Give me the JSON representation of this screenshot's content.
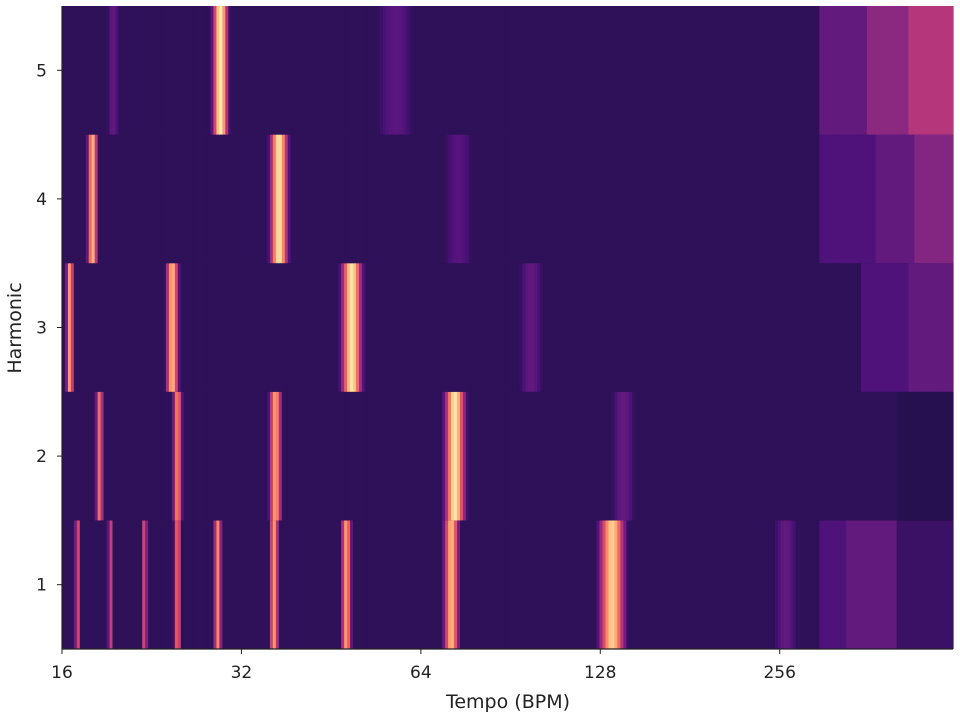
{
  "chart_data": {
    "type": "heatmap",
    "title": "",
    "xlabel": "Tempo (BPM)",
    "ylabel": "Harmonic",
    "x_scale": "log2",
    "xlim": [
      16,
      500
    ],
    "ylim": [
      0.5,
      5.5
    ],
    "x_ticks": [
      "16",
      "32",
      "64",
      "128",
      "256"
    ],
    "y_ticks": [
      "1",
      "2",
      "3",
      "4",
      "5"
    ],
    "colormap": [
      "#000004",
      "#1c1044",
      "#4f127b",
      "#812581",
      "#b5367a",
      "#e55064",
      "#fb8761",
      "#fec287",
      "#fcfdbf"
    ],
    "background_level": 0.17,
    "band_levels": [
      {
        "harmonic": 1,
        "tail": [
          [
            300,
            0.25
          ],
          [
            330,
            0.3
          ],
          [
            400,
            0.2
          ],
          [
            500,
            0.18
          ]
        ]
      },
      {
        "harmonic": 2,
        "tail": [
          [
            400,
            0.15
          ],
          [
            500,
            0.13
          ]
        ]
      },
      {
        "harmonic": 3,
        "tail": [
          [
            350,
            0.25
          ],
          [
            420,
            0.3
          ],
          [
            500,
            0.3
          ]
        ]
      },
      {
        "harmonic": 4,
        "tail": [
          [
            300,
            0.25
          ],
          [
            370,
            0.3
          ],
          [
            430,
            0.38
          ],
          [
            500,
            0.4
          ]
        ]
      },
      {
        "harmonic": 5,
        "tail": [
          [
            300,
            0.3
          ],
          [
            360,
            0.4
          ],
          [
            420,
            0.5
          ],
          [
            500,
            0.58
          ]
        ]
      }
    ],
    "peaks": [
      {
        "harmonic": 1,
        "bpm": 17.0,
        "value": 0.6,
        "width": 0.012
      },
      {
        "harmonic": 1,
        "bpm": 19.3,
        "value": 0.55,
        "width": 0.012
      },
      {
        "harmonic": 1,
        "bpm": 22.0,
        "value": 0.6,
        "width": 0.012
      },
      {
        "harmonic": 1,
        "bpm": 25.0,
        "value": 0.7,
        "width": 0.015
      },
      {
        "harmonic": 1,
        "bpm": 29.2,
        "value": 0.75,
        "width": 0.015
      },
      {
        "harmonic": 1,
        "bpm": 36.3,
        "value": 0.78,
        "width": 0.018
      },
      {
        "harmonic": 1,
        "bpm": 48.0,
        "value": 0.8,
        "width": 0.02
      },
      {
        "harmonic": 1,
        "bpm": 72.0,
        "value": 0.85,
        "width": 0.03
      },
      {
        "harmonic": 1,
        "bpm": 134.0,
        "value": 0.9,
        "width": 0.05
      },
      {
        "harmonic": 1,
        "bpm": 262.0,
        "value": 0.3,
        "width": 0.06
      },
      {
        "harmonic": 2,
        "bpm": 18.5,
        "value": 0.7,
        "width": 0.015
      },
      {
        "harmonic": 2,
        "bpm": 25.0,
        "value": 0.75,
        "width": 0.018
      },
      {
        "harmonic": 2,
        "bpm": 36.5,
        "value": 0.8,
        "width": 0.025
      },
      {
        "harmonic": 2,
        "bpm": 73.0,
        "value": 0.95,
        "width": 0.04
      },
      {
        "harmonic": 2,
        "bpm": 140.0,
        "value": 0.3,
        "width": 0.06
      },
      {
        "harmonic": 3,
        "bpm": 16.5,
        "value": 0.8,
        "width": 0.015
      },
      {
        "harmonic": 3,
        "bpm": 24.5,
        "value": 0.85,
        "width": 0.025
      },
      {
        "harmonic": 3,
        "bpm": 49.0,
        "value": 0.95,
        "width": 0.04
      },
      {
        "harmonic": 3,
        "bpm": 98.0,
        "value": 0.3,
        "width": 0.06
      },
      {
        "harmonic": 4,
        "bpm": 18.0,
        "value": 0.85,
        "width": 0.02
      },
      {
        "harmonic": 4,
        "bpm": 37.0,
        "value": 0.95,
        "width": 0.035
      },
      {
        "harmonic": 4,
        "bpm": 74.0,
        "value": 0.27,
        "width": 0.08
      },
      {
        "harmonic": 5,
        "bpm": 19.5,
        "value": 0.3,
        "width": 0.03
      },
      {
        "harmonic": 5,
        "bpm": 29.5,
        "value": 0.97,
        "width": 0.03
      },
      {
        "harmonic": 5,
        "bpm": 58.0,
        "value": 0.28,
        "width": 0.1
      }
    ]
  }
}
